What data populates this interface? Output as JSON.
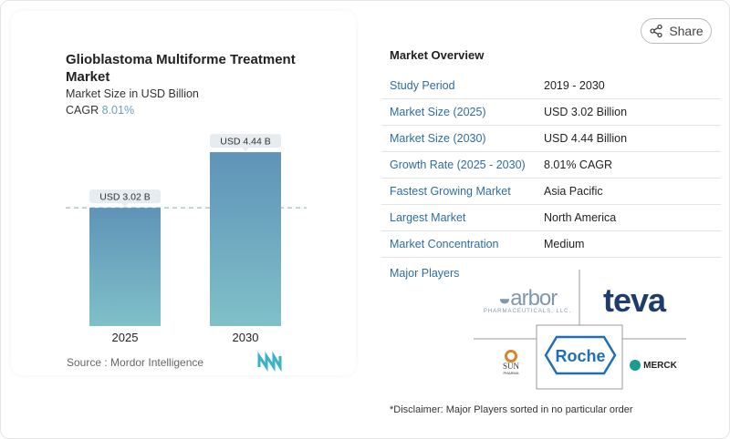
{
  "header": {
    "share_label": "Share",
    "share_icon": "share-icon"
  },
  "chart_data": {
    "type": "bar",
    "title": "Glioblastoma Multiforme Treatment Market",
    "subtitle": "Market Size in USD Billion",
    "cagr_label": "CAGR",
    "cagr_value": "8.01%",
    "categories": [
      "2025",
      "2030"
    ],
    "values": [
      3.02,
      4.44
    ],
    "data_labels": [
      "USD 3.02 B",
      "USD 4.44 B"
    ],
    "bar_color_top": "#5f93b8",
    "bar_color_bottom": "#7fc0c8",
    "reference_line": 3.02,
    "source": "Source :  Mordor Intelligence"
  },
  "overview": {
    "title": "Market Overview",
    "rows": [
      {
        "label": "Study Period",
        "value": "2019 - 2030"
      },
      {
        "label": "Market Size (2025)",
        "value": "USD 3.02 Billion"
      },
      {
        "label": "Market Size (2030)",
        "value": "USD 4.44 Billion"
      },
      {
        "label": "Growth Rate (2025 - 2030)",
        "value": "8.01% CAGR"
      },
      {
        "label": "Fastest Growing Market",
        "value": "Asia Pacific"
      },
      {
        "label": "Largest Market",
        "value": "North America"
      },
      {
        "label": "Market Concentration",
        "value": "Medium"
      }
    ],
    "major_players_label": "Major Players",
    "players": [
      "arbor PHARMACEUTICALS, LLC.",
      "teva",
      "Roche",
      "SUN PHARMA",
      "MERCK"
    ],
    "disclaimer": "*Disclaimer: Major Players sorted in no particular order"
  }
}
